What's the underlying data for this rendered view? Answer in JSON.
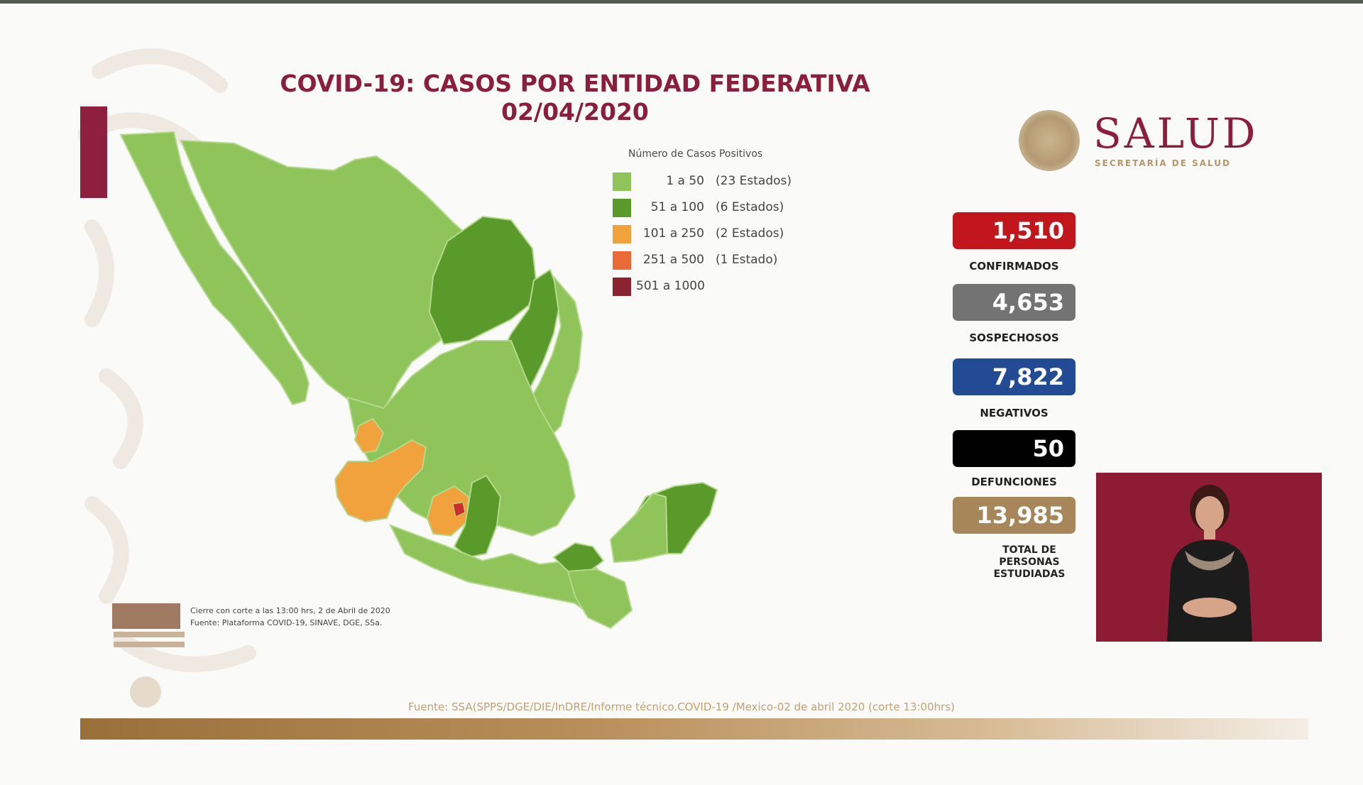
{
  "title": {
    "line1": "COVID-19: CASOS POR ENTIDAD FEDERATIVA",
    "line2": "02/04/2020"
  },
  "logo": {
    "name": "SALUD",
    "subtitle": "SECRETARÍA DE SALUD"
  },
  "legend": {
    "title": "Número de Casos Positivos",
    "items": [
      {
        "range": "1 a    50",
        "count": "(23 Estados)",
        "color": "#8fc45a"
      },
      {
        "range": "51 a   100",
        "count": "(6 Estados)",
        "color": "#5a9a2b"
      },
      {
        "range": "101 a   250",
        "count": "(2 Estados)",
        "color": "#f2a23c"
      },
      {
        "range": "251 a   500",
        "count": "(1 Estado)",
        "color": "#ea6a37"
      },
      {
        "range": "501 a 1000",
        "count": "",
        "color": "#8b2430"
      }
    ]
  },
  "stats": [
    {
      "value": "1,510",
      "label": "CONFIRMADOS",
      "color": "#c0161c"
    },
    {
      "value": "4,653",
      "label": "SOSPECHOSOS",
      "color": "#737373"
    },
    {
      "value": "7,822",
      "label": "NEGATIVOS",
      "color": "#234b93"
    },
    {
      "value": "50",
      "label": "DEFUNCIONES",
      "color": "#000000"
    },
    {
      "value": "13,985",
      "label": "TOTAL DE PERSONAS ESTUDIADAS",
      "color": "#a7875a"
    }
  ],
  "notes": {
    "line1": "Cierre con corte a las 13:00 hrs, 2 de Abril de 2020",
    "line2": "Fuente: Plataforma COVID-19, SINAVE, DGE, SSa."
  },
  "fuente": "Fuente: SSA(SPPS/DGE/DIE/InDRE/Informe técnico.COVID-19 /Mexico-02 de abril 2020 (corte 13:00hrs)",
  "colors": {
    "brand": "#8b1d3d",
    "map_base": "#8fc45a",
    "map_mid": "#5a9a2b",
    "map_orange": "#f2a23c",
    "map_red": "#ea6a37"
  }
}
